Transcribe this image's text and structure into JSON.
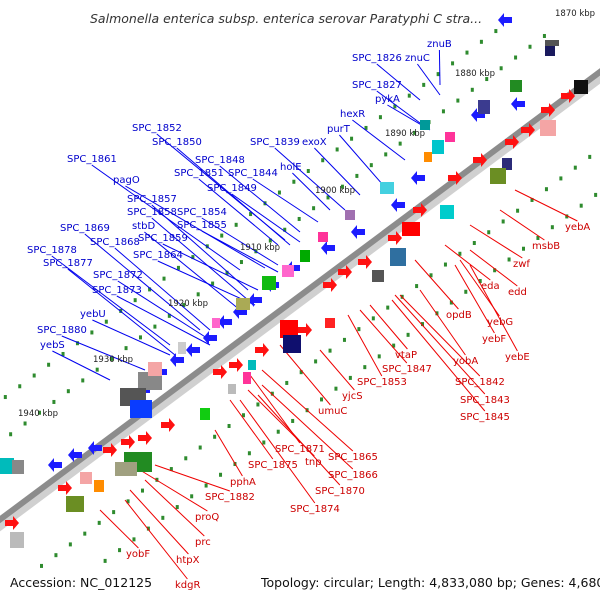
{
  "header": {
    "title": "Salmonella enterica subsp. enterica serovar Paratyphi C stra..."
  },
  "footer": {
    "accession": "Accession: NC_012125",
    "summary": "Topology: circular; Length: 4,833,080 bp; Genes: 4,680"
  },
  "scale_marks": [
    "1870 kbp",
    "1880 kbp",
    "1890 kbp",
    "1900 kbp",
    "1910 kbp",
    "1920 kbp",
    "1930 kbp",
    "1940 kbp"
  ],
  "forward_labels": [
    "znuB",
    "SPC_1826",
    "znuC",
    "SPC_1827",
    "pykA",
    "hexR",
    "purT",
    "SPC_1839",
    "exoX",
    "SPC_1852",
    "SPC_1850",
    "SPC_1848",
    "SPC_1844",
    "holE",
    "SPC_1861",
    "SPC_1851",
    "pagO",
    "SPC_1849",
    "SPC_1857",
    "SPC_1858",
    "SPC_1854",
    "stbD",
    "SPC_1855",
    "SPC_1869",
    "SPC_1859",
    "SPC_1868",
    "SPC_1878",
    "SPC_1864",
    "SPC_1877",
    "SPC_1872",
    "SPC_1873",
    "yebU",
    "SPC_1880",
    "yebS"
  ],
  "reverse_labels": [
    "yebA",
    "msbB",
    "zwf",
    "eda",
    "edd",
    "opdB",
    "yebG",
    "yebF",
    "yebE",
    "vtaP",
    "yobA",
    "SPC_1847",
    "SPC_1842",
    "SPC_1853",
    "SPC_1843",
    "SPC_1845",
    "yjcS",
    "umuC",
    "SPC_1871",
    "SPC_1865",
    "tnp",
    "SPC_1875",
    "SPC_1866",
    "pphA",
    "SPC_1870",
    "SPC_1882",
    "SPC_1874",
    "proQ",
    "prc",
    "yobF",
    "htpX",
    "kdgR"
  ]
}
